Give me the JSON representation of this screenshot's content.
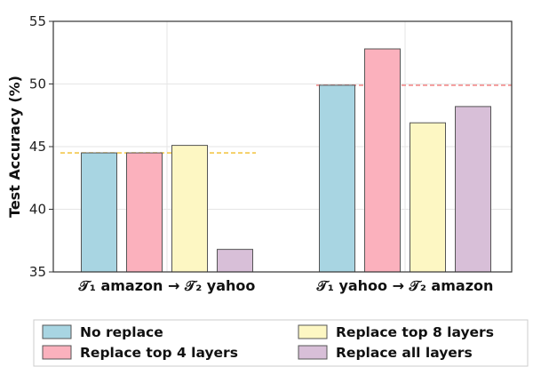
{
  "chart_data": {
    "type": "bar",
    "ylabel": "Test Accuracy (%)",
    "ylim": [
      35,
      55
    ],
    "yticks": [
      35,
      40,
      45,
      50,
      55
    ],
    "grid": true,
    "legend_position": "bottom",
    "groups": [
      {
        "label": "𝒯₁ amazon → 𝒯₂ yahoo",
        "baseline": 44.5,
        "baseline_color": "#f2c84b"
      },
      {
        "label": "𝒯₁ yahoo → 𝒯₂ amazon",
        "baseline": 49.9,
        "baseline_color": "#f28b8b"
      }
    ],
    "series": [
      {
        "name": "No replace",
        "color": "#a8d5e2",
        "values": [
          44.5,
          49.9
        ]
      },
      {
        "name": "Replace top 4 layers",
        "color": "#fbb1bd",
        "values": [
          44.5,
          52.8
        ]
      },
      {
        "name": "Replace top 8 layers",
        "color": "#fdf7c3",
        "values": [
          45.1,
          46.9
        ]
      },
      {
        "name": "Replace all layers",
        "color": "#d8bfd8",
        "values": [
          36.8,
          48.2
        ]
      }
    ]
  }
}
